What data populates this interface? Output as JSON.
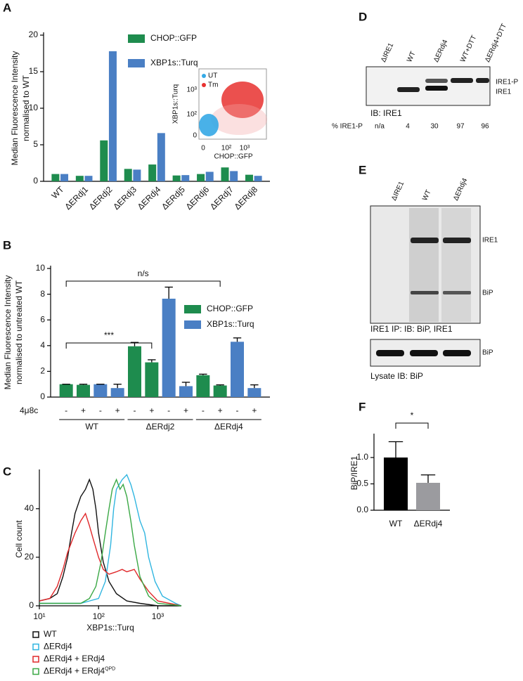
{
  "panel_letters": [
    "A",
    "B",
    "C",
    "D",
    "E",
    "F"
  ],
  "chart_data": [
    {
      "type": "bar",
      "ylabel": [
        "Median Fluorescence Intensity",
        "normalised to WT"
      ],
      "categories": [
        "WT",
        "ΔERdj1",
        "ΔERdj2",
        "ΔERdj3",
        "ΔERdj4",
        "ΔERdj5",
        "ΔERdj6",
        "ΔERdj7",
        "ΔERdj8"
      ],
      "series": [
        {
          "name": "CHOP::GFP",
          "color": "#1e8c4e",
          "values": [
            1.0,
            0.75,
            5.6,
            1.7,
            2.3,
            0.8,
            1.0,
            1.9,
            0.9
          ]
        },
        {
          "name": "XBP1s::Turq",
          "color": "#4a7fc4",
          "values": [
            1.0,
            0.75,
            17.8,
            1.6,
            6.6,
            0.85,
            1.3,
            1.4,
            0.75
          ]
        }
      ],
      "ylim": [
        0,
        20
      ],
      "yticks": [
        0,
        5,
        10,
        15,
        20
      ]
    },
    {
      "type": "bar",
      "ylabel": [
        "Median Fluorescence Intensity",
        "normalised to untreated WT"
      ],
      "categories": [
        "-",
        "+",
        "-",
        "+",
        "-",
        "+",
        "-",
        "+",
        "-",
        "+",
        "-",
        "+"
      ],
      "row_label": "4μ8c",
      "groups": [
        "WT",
        "ΔERdj2",
        "ΔERdj4"
      ],
      "series": [
        {
          "name": "CHOP::GFP",
          "color": "#1e8c4e",
          "values": [
            1.0,
            0.95,
            null,
            null,
            3.95,
            2.7,
            null,
            null,
            1.7,
            0.9,
            null,
            null
          ],
          "errors": [
            0,
            0.05,
            null,
            null,
            0.3,
            0.2,
            null,
            null,
            0.08,
            0.05,
            null,
            null
          ]
        },
        {
          "name": "XBP1s::Turq",
          "color": "#4a7fc4",
          "values": [
            null,
            null,
            1.0,
            0.7,
            null,
            null,
            7.65,
            0.85,
            null,
            null,
            4.3,
            0.7
          ],
          "errors": [
            null,
            null,
            0,
            0.3,
            null,
            null,
            0.9,
            0.3,
            null,
            null,
            0.3,
            0.25
          ]
        }
      ],
      "annotations": [
        "n/s",
        "***"
      ],
      "ylim": [
        0,
        10
      ],
      "yticks": [
        0,
        2,
        4,
        6,
        8,
        10
      ]
    },
    {
      "type": "line",
      "ylabel": "Cell count",
      "xlabel": "XBP1s::Turq",
      "xlog": true,
      "series": [
        {
          "name": "WT",
          "color": "#111111",
          "x": [
            10,
            15,
            20,
            25,
            30,
            35,
            40,
            50,
            60,
            70,
            80,
            90,
            100,
            120,
            150,
            200,
            300,
            500,
            1000,
            2500
          ],
          "values": [
            2,
            3,
            5,
            12,
            20,
            30,
            38,
            45,
            48,
            52,
            48,
            40,
            30,
            18,
            10,
            5,
            2,
            1,
            0,
            0
          ]
        },
        {
          "name": "ΔERdj4",
          "color": "#2fb5e0",
          "x": [
            10,
            50,
            100,
            130,
            160,
            180,
            200,
            250,
            300,
            350,
            400,
            500,
            600,
            700,
            900,
            1200,
            2000,
            2500
          ],
          "values": [
            1,
            1,
            3,
            10,
            25,
            40,
            48,
            52,
            54,
            50,
            45,
            35,
            30,
            20,
            10,
            4,
            1,
            0
          ]
        },
        {
          "name": "ΔERdj4 + ERdj4",
          "color": "#e0282a",
          "x": [
            10,
            15,
            20,
            25,
            30,
            40,
            50,
            60,
            70,
            80,
            100,
            120,
            150,
            200,
            250,
            300,
            400,
            500,
            700,
            1000,
            2500
          ],
          "values": [
            2,
            3,
            8,
            15,
            22,
            30,
            35,
            38,
            33,
            28,
            20,
            15,
            13,
            14,
            15,
            14,
            15,
            11,
            6,
            2,
            0
          ]
        },
        {
          "name": "ΔERdj4 + ERdj4",
          "name_sup": "QPD",
          "color": "#3aa845",
          "x": [
            10,
            50,
            70,
            90,
            110,
            130,
            150,
            170,
            200,
            230,
            260,
            300,
            350,
            400,
            500,
            700,
            1000,
            2500
          ],
          "values": [
            1,
            1,
            3,
            8,
            18,
            30,
            40,
            48,
            52,
            48,
            50,
            45,
            35,
            25,
            12,
            4,
            1,
            0
          ]
        }
      ],
      "xlim": [
        10,
        2500
      ],
      "xticks": [
        {
          "value": 10,
          "label": "10¹"
        },
        {
          "value": 100,
          "label": "10²"
        },
        {
          "value": 1000,
          "label": "10³"
        }
      ],
      "ylim": [
        0,
        55
      ],
      "yticks": [
        0,
        20,
        40
      ]
    },
    {
      "type": "bar",
      "ylabel": "BiP/IRE1",
      "categories": [
        "WT",
        "ΔERdj4"
      ],
      "values": [
        1.0,
        0.52
      ],
      "errors": [
        0.3,
        0.15
      ],
      "colors": [
        "#000000",
        "#9b9b9f"
      ],
      "annotations": [
        "*"
      ],
      "ylim": [
        0,
        1.4
      ],
      "yticks": [
        {
          "value": 0,
          "label": "0.0"
        },
        {
          "value": 0.5,
          "label": "0.5"
        },
        {
          "value": 1,
          "label": "1.0"
        }
      ]
    }
  ],
  "inset_a": {
    "ylabel": "XBP1s::Turq",
    "xlabel": "CHOP::GFP",
    "legend": [
      "UT",
      "Tm"
    ],
    "yticks": [
      "10³",
      "10²",
      "0"
    ],
    "xticks": [
      "0",
      "10²",
      "10³"
    ]
  },
  "blot_d": {
    "lanes": [
      "ΔIRE1",
      "WT",
      "ΔERdj4",
      "WT+DTT",
      "ΔERdj4+DTT"
    ],
    "bands": [
      "IRE1-P",
      "IRE1"
    ],
    "caption": "IB: IRE1",
    "row_label": "% IRE1-P",
    "row_values": [
      "n/a",
      "4",
      "30",
      "97",
      "96"
    ]
  },
  "blot_e": {
    "lanes": [
      "ΔIRE1",
      "WT",
      "ΔERdj4"
    ],
    "bands": [
      "IRE1",
      "BiP"
    ],
    "caption": "IRE1 IP: IB: BiP, IRE1",
    "lysate_band": "BiP",
    "lysate_caption": "Lysate IB: BiP"
  }
}
